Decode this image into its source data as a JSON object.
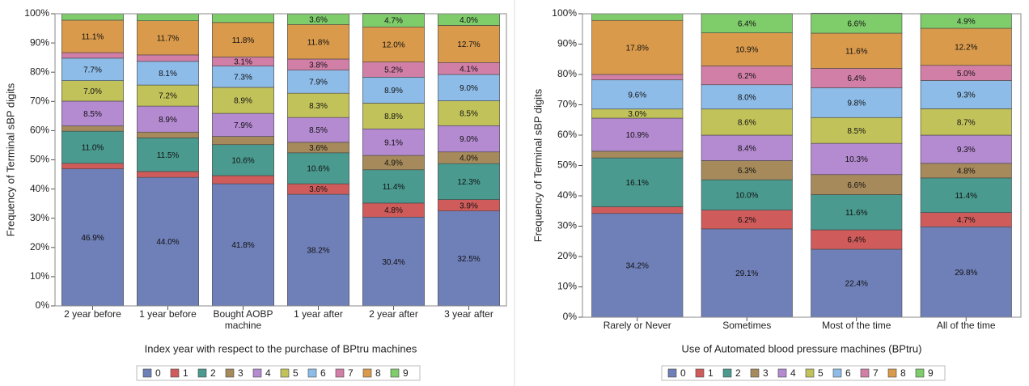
{
  "chart_data": [
    {
      "type": "stacked_bar",
      "x_label": "Index year with respect to the purchase of BPtru machines",
      "y_label": "Frequency of Terminal sBP digits",
      "categories": [
        "2 year before",
        "1 year before",
        "Bought AOBP machine",
        "1 year after",
        "2 year after",
        "3 year after"
      ],
      "ylim": [
        0,
        100
      ],
      "yticks": [
        {
          "value": 0,
          "label": "0%"
        },
        {
          "value": 10,
          "label": "10%"
        },
        {
          "value": 20,
          "label": "20%"
        },
        {
          "value": 30,
          "label": "30%"
        },
        {
          "value": 40,
          "label": "40%"
        },
        {
          "value": 50,
          "label": "50%"
        },
        {
          "value": 60,
          "label": "60%"
        },
        {
          "value": 70,
          "label": "70%"
        },
        {
          "value": 80,
          "label": "80%"
        },
        {
          "value": 90,
          "label": "90%"
        },
        {
          "value": 100,
          "label": "100%"
        }
      ],
      "series": [
        {
          "name": "0",
          "color": "#6f7fb8",
          "values": [
            46.9,
            44.0,
            41.8,
            38.2,
            30.4,
            32.5
          ],
          "value_labels": [
            "46.9%",
            "44.0%",
            "41.8%",
            "38.2%",
            "30.4%",
            "32.5%"
          ]
        },
        {
          "name": "1",
          "color": "#d05b5b",
          "values": [
            1.9,
            2.0,
            2.8,
            3.6,
            4.8,
            3.9
          ],
          "value_labels": [
            null,
            null,
            null,
            "3.6%",
            "4.8%",
            "3.9%"
          ]
        },
        {
          "name": "2",
          "color": "#4a9a8f",
          "values": [
            11.0,
            11.5,
            10.6,
            10.6,
            11.4,
            12.3
          ],
          "value_labels": [
            "11.0%",
            "11.5%",
            "10.6%",
            "10.6%",
            "11.4%",
            "12.3%"
          ]
        },
        {
          "name": "3",
          "color": "#a68a5b",
          "values": [
            1.8,
            2.0,
            2.8,
            3.6,
            4.9,
            4.0
          ],
          "value_labels": [
            null,
            null,
            null,
            "3.6%",
            "4.9%",
            "4.0%"
          ]
        },
        {
          "name": "4",
          "color": "#b48ad0",
          "values": [
            8.5,
            8.9,
            7.9,
            8.5,
            9.1,
            9.0
          ],
          "value_labels": [
            "8.5%",
            "8.9%",
            "7.9%",
            "8.5%",
            "9.1%",
            "9.0%"
          ]
        },
        {
          "name": "5",
          "color": "#c2c25b",
          "values": [
            7.0,
            7.2,
            8.9,
            8.3,
            8.8,
            8.5
          ],
          "value_labels": [
            "7.0%",
            "7.2%",
            "8.9%",
            "8.3%",
            "8.8%",
            "8.5%"
          ]
        },
        {
          "name": "6",
          "color": "#8ebce8",
          "values": [
            7.7,
            8.1,
            7.3,
            7.9,
            8.9,
            9.0
          ],
          "value_labels": [
            "7.7%",
            "8.1%",
            "7.3%",
            "7.9%",
            "8.9%",
            "9.0%"
          ]
        },
        {
          "name": "7",
          "color": "#d27fa8",
          "values": [
            1.9,
            2.2,
            3.1,
            3.8,
            5.2,
            4.1
          ],
          "value_labels": [
            null,
            null,
            "3.1%",
            "3.8%",
            "5.2%",
            "4.1%"
          ]
        },
        {
          "name": "8",
          "color": "#d99a4b",
          "values": [
            11.1,
            11.7,
            11.8,
            11.8,
            12.0,
            12.7
          ],
          "value_labels": [
            "11.1%",
            "11.7%",
            "11.8%",
            "11.8%",
            "12.0%",
            "12.7%"
          ]
        },
        {
          "name": "9",
          "color": "#7fcc6b",
          "values": [
            2.2,
            2.4,
            3.0,
            3.6,
            4.7,
            4.0
          ],
          "value_labels": [
            null,
            null,
            null,
            "3.6%",
            "4.7%",
            "4.0%"
          ]
        }
      ]
    },
    {
      "type": "stacked_bar",
      "x_label": "Use of Automated blood pressure machines (BPtru)",
      "y_label": "Frequency of Terminal sBP digits",
      "categories": [
        "Rarely or Never",
        "Sometimes",
        "Most of the time",
        "All of the time"
      ],
      "ylim": [
        0,
        100
      ],
      "yticks": [
        {
          "value": 0,
          "label": "0%"
        },
        {
          "value": 10,
          "label": "10%"
        },
        {
          "value": 20,
          "label": "20%"
        },
        {
          "value": 30,
          "label": "30%"
        },
        {
          "value": 40,
          "label": "40%"
        },
        {
          "value": 50,
          "label": "50%"
        },
        {
          "value": 60,
          "label": "60%"
        },
        {
          "value": 70,
          "label": "70%"
        },
        {
          "value": 80,
          "label": "80%"
        },
        {
          "value": 90,
          "label": "90%"
        },
        {
          "value": 100,
          "label": "100%"
        }
      ],
      "series": [
        {
          "name": "0",
          "color": "#6f7fb8",
          "values": [
            34.2,
            29.1,
            22.4,
            29.8
          ],
          "value_labels": [
            "34.2%",
            "29.1%",
            "22.4%",
            "29.8%"
          ]
        },
        {
          "name": "1",
          "color": "#d05b5b",
          "values": [
            2.2,
            6.2,
            6.4,
            4.7
          ],
          "value_labels": [
            null,
            "6.2%",
            "6.4%",
            "4.7%"
          ]
        },
        {
          "name": "2",
          "color": "#4a9a8f",
          "values": [
            16.1,
            10.0,
            11.6,
            11.4
          ],
          "value_labels": [
            "16.1%",
            "10.0%",
            "11.6%",
            "11.4%"
          ]
        },
        {
          "name": "3",
          "color": "#a68a5b",
          "values": [
            2.2,
            6.3,
            6.6,
            4.8
          ],
          "value_labels": [
            null,
            "6.3%",
            "6.6%",
            "4.8%"
          ]
        },
        {
          "name": "4",
          "color": "#b48ad0",
          "values": [
            10.9,
            8.4,
            10.3,
            9.3
          ],
          "value_labels": [
            "10.9%",
            "8.4%",
            "10.3%",
            "9.3%"
          ]
        },
        {
          "name": "5",
          "color": "#c2c25b",
          "values": [
            3.0,
            8.6,
            8.5,
            8.7
          ],
          "value_labels": [
            "3.0%",
            "8.6%",
            "8.5%",
            "8.7%"
          ]
        },
        {
          "name": "6",
          "color": "#8ebce8",
          "values": [
            9.6,
            8.0,
            9.8,
            9.3
          ],
          "value_labels": [
            "9.6%",
            "8.0%",
            "9.8%",
            "9.3%"
          ]
        },
        {
          "name": "7",
          "color": "#d27fa8",
          "values": [
            1.8,
            6.2,
            6.4,
            5.0
          ],
          "value_labels": [
            null,
            "6.2%",
            "6.4%",
            "5.0%"
          ]
        },
        {
          "name": "8",
          "color": "#d99a4b",
          "values": [
            17.8,
            10.9,
            11.6,
            12.2
          ],
          "value_labels": [
            "17.8%",
            "10.9%",
            "11.6%",
            "12.2%"
          ]
        },
        {
          "name": "9",
          "color": "#7fcc6b",
          "values": [
            2.2,
            6.4,
            6.6,
            4.9
          ],
          "value_labels": [
            null,
            "6.4%",
            "6.6%",
            "4.9%"
          ]
        }
      ]
    }
  ]
}
